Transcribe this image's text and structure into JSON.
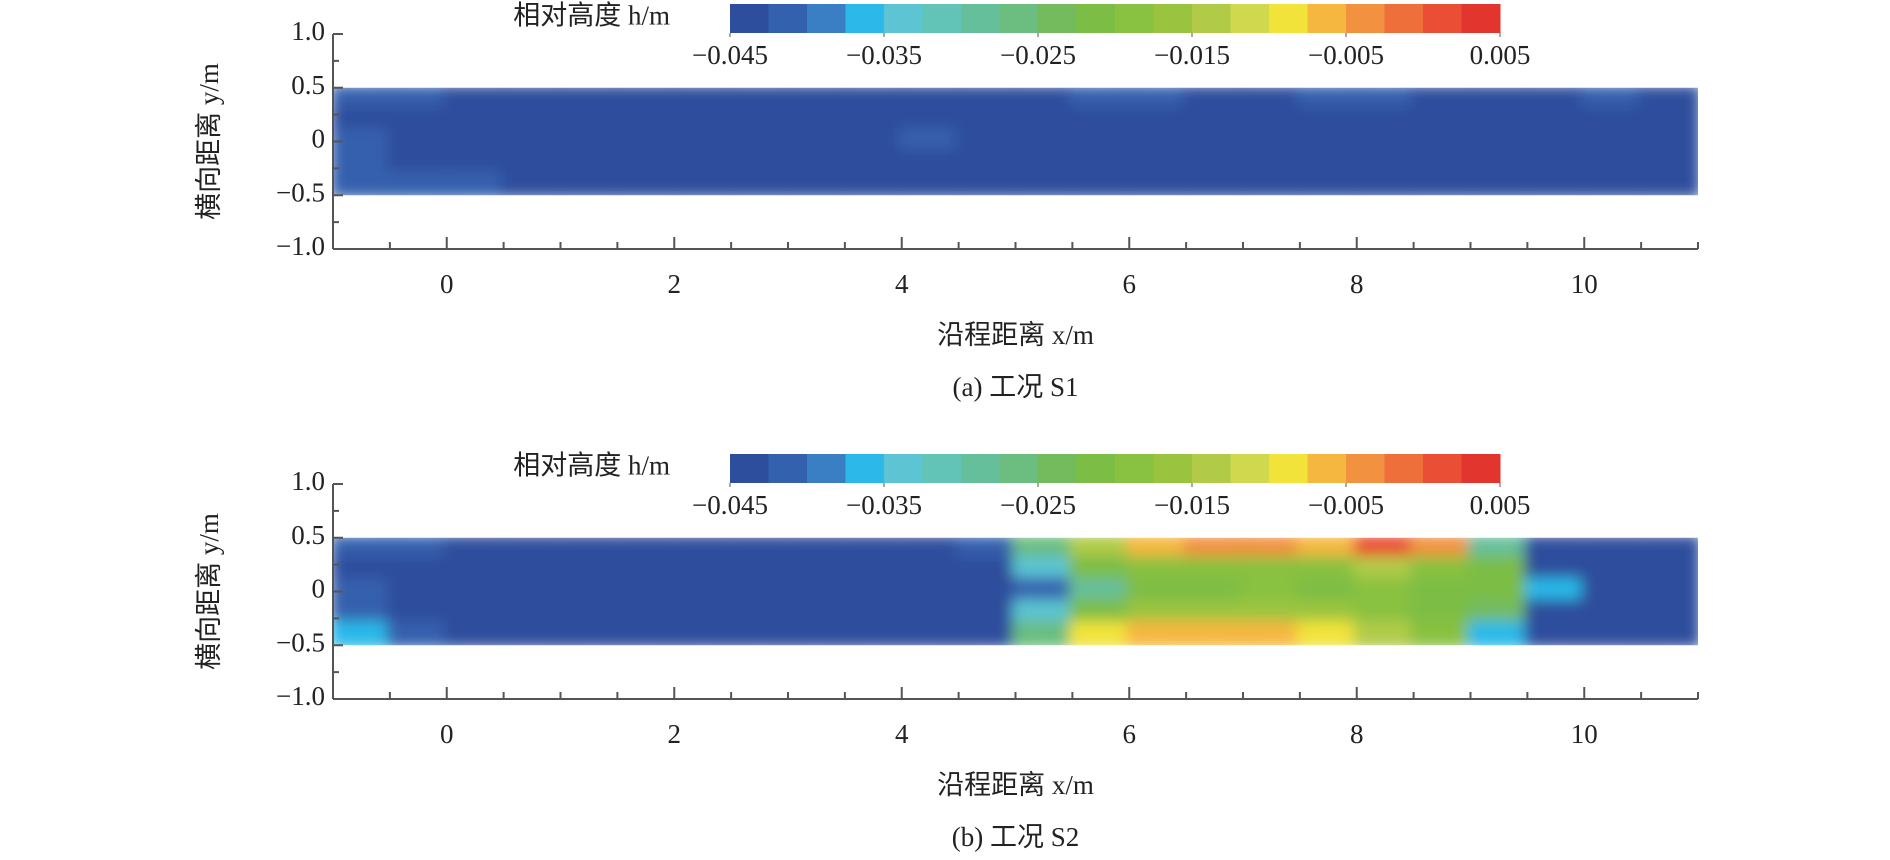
{
  "chart_data": [
    {
      "type": "contour",
      "caption": "(a) 工况 S1",
      "xlabel": "沿程距离 x/m",
      "ylabel": "横向距离 y/m",
      "xlim": [
        -1,
        11
      ],
      "ylim": [
        -1,
        1
      ],
      "xticks": [
        0,
        2,
        4,
        6,
        8,
        10
      ],
      "xticks_minor": [
        -0.5,
        0.5,
        1,
        1.5,
        2.5,
        3,
        3.5,
        4.5,
        5,
        5.5,
        6.5,
        7,
        7.5,
        8.5,
        9,
        9.5,
        10.5,
        11
      ],
      "yticks": [
        {
          "value": -1,
          "label": "−1.0"
        },
        {
          "value": -0.5,
          "label": "−0.5"
        },
        0,
        0.5,
        {
          "value": 1,
          "label": "1.0"
        }
      ],
      "yticks_minor": [
        -0.75,
        -0.25,
        0.25,
        0.75
      ],
      "x_edges": [
        -1,
        -0.5,
        0,
        0.5,
        1,
        1.5,
        2,
        2.5,
        3,
        3.5,
        4,
        4.5,
        5,
        5.5,
        6,
        6.5,
        7,
        7.5,
        8,
        8.5,
        9,
        9.5,
        10,
        10.5,
        11
      ],
      "y_edges": [
        0.5,
        0.3,
        0.1,
        -0.1,
        -0.3,
        -0.5
      ],
      "z": [
        [
          -0.042,
          -0.042,
          -0.043,
          -0.044,
          -0.044,
          -0.044,
          -0.044,
          -0.044,
          -0.043,
          -0.043,
          -0.044,
          -0.044,
          -0.043,
          -0.042,
          -0.042,
          -0.043,
          -0.043,
          -0.042,
          -0.042,
          -0.043,
          -0.043,
          -0.043,
          -0.042,
          -0.043
        ],
        [
          -0.043,
          -0.043,
          -0.044,
          -0.044,
          -0.044,
          -0.044,
          -0.044,
          -0.044,
          -0.044,
          -0.043,
          -0.044,
          -0.044,
          -0.043,
          -0.043,
          -0.043,
          -0.043,
          -0.043,
          -0.043,
          -0.043,
          -0.043,
          -0.043,
          -0.043,
          -0.043,
          -0.043
        ],
        [
          -0.042,
          -0.043,
          -0.043,
          -0.044,
          -0.044,
          -0.043,
          -0.044,
          -0.044,
          -0.044,
          -0.043,
          -0.042,
          -0.043,
          -0.044,
          -0.044,
          -0.043,
          -0.043,
          -0.044,
          -0.044,
          -0.044,
          -0.043,
          -0.044,
          -0.044,
          -0.043,
          -0.043
        ],
        [
          -0.042,
          -0.043,
          -0.044,
          -0.044,
          -0.044,
          -0.043,
          -0.044,
          -0.044,
          -0.044,
          -0.043,
          -0.043,
          -0.043,
          -0.044,
          -0.044,
          -0.044,
          -0.044,
          -0.044,
          -0.044,
          -0.044,
          -0.044,
          -0.044,
          -0.044,
          -0.043,
          -0.043
        ],
        [
          -0.041,
          -0.041,
          -0.042,
          -0.043,
          -0.043,
          -0.043,
          -0.043,
          -0.043,
          -0.043,
          -0.043,
          -0.043,
          -0.043,
          -0.043,
          -0.043,
          -0.043,
          -0.043,
          -0.043,
          -0.043,
          -0.043,
          -0.043,
          -0.043,
          -0.043,
          -0.043,
          -0.043
        ]
      ],
      "colorbar": {
        "label": "相对高度 h/m",
        "lim": [
          -0.045,
          0.005
        ],
        "ticks": [
          {
            "value": -0.045,
            "label": "−0.045"
          },
          {
            "value": -0.035,
            "label": "−0.035"
          },
          {
            "value": -0.025,
            "label": "−0.025"
          },
          {
            "value": -0.015,
            "label": "−0.015"
          },
          {
            "value": -0.005,
            "label": "−0.005"
          },
          0.005
        ],
        "colors": [
          "#2d4e9c",
          "#3461ad",
          "#3a7fc4",
          "#2cb9e9",
          "#5cc4d2",
          "#62c3b7",
          "#66bf9b",
          "#6bbd80",
          "#74bb5e",
          "#7cbd45",
          "#89c140",
          "#9ac43f",
          "#b1cb48",
          "#d0d94d",
          "#f2e33a",
          "#f5b740",
          "#f29240",
          "#ee6f3a",
          "#ea4e35",
          "#e2352e"
        ]
      }
    },
    {
      "type": "contour",
      "caption": "(b) 工况 S2",
      "xlabel": "沿程距离 x/m",
      "ylabel": "横向距离 y/m",
      "xlim": [
        -1,
        11
      ],
      "ylim": [
        -1,
        1
      ],
      "xticks": [
        0,
        2,
        4,
        6,
        8,
        10
      ],
      "xticks_minor": [
        -0.5,
        0.5,
        1,
        1.5,
        2.5,
        3,
        3.5,
        4.5,
        5,
        5.5,
        6.5,
        7,
        7.5,
        8.5,
        9,
        9.5,
        10.5,
        11
      ],
      "yticks": [
        {
          "value": -1,
          "label": "−1.0"
        },
        {
          "value": -0.5,
          "label": "−0.5"
        },
        0,
        0.5,
        {
          "value": 1,
          "label": "1.0"
        }
      ],
      "yticks_minor": [
        -0.75,
        -0.25,
        0.25,
        0.75
      ],
      "x_edges": [
        -1,
        -0.5,
        0,
        0.5,
        1,
        1.5,
        2,
        2.5,
        3,
        3.5,
        4,
        4.5,
        5,
        5.5,
        6,
        6.5,
        7,
        7.5,
        8,
        8.5,
        9,
        9.5,
        10,
        10.5,
        11
      ],
      "y_edges": [
        0.5,
        0.3,
        0.1,
        -0.1,
        -0.3,
        -0.5
      ],
      "z": [
        [
          -0.041,
          -0.042,
          -0.043,
          -0.044,
          -0.044,
          -0.044,
          -0.044,
          -0.044,
          -0.044,
          -0.044,
          -0.044,
          -0.04,
          -0.025,
          -0.015,
          -0.006,
          -0.004,
          -0.005,
          -0.006,
          0.001,
          -0.003,
          -0.03,
          -0.044,
          -0.044,
          -0.044
        ],
        [
          -0.043,
          -0.043,
          -0.044,
          -0.044,
          -0.044,
          -0.044,
          -0.044,
          -0.044,
          -0.044,
          -0.044,
          -0.044,
          -0.044,
          -0.033,
          -0.022,
          -0.019,
          -0.018,
          -0.018,
          -0.019,
          -0.014,
          -0.02,
          -0.021,
          -0.044,
          -0.044,
          -0.044
        ],
        [
          -0.042,
          -0.043,
          -0.044,
          -0.044,
          -0.044,
          -0.044,
          -0.044,
          -0.044,
          -0.044,
          -0.044,
          -0.044,
          -0.044,
          -0.042,
          -0.03,
          -0.022,
          -0.021,
          -0.02,
          -0.021,
          -0.02,
          -0.022,
          -0.021,
          -0.036,
          -0.044,
          -0.044
        ],
        [
          -0.041,
          -0.043,
          -0.044,
          -0.044,
          -0.044,
          -0.044,
          -0.044,
          -0.044,
          -0.044,
          -0.044,
          -0.044,
          -0.044,
          -0.034,
          -0.022,
          -0.017,
          -0.016,
          -0.016,
          -0.017,
          -0.02,
          -0.022,
          -0.023,
          -0.044,
          -0.044,
          -0.044
        ],
        [
          -0.037,
          -0.04,
          -0.043,
          -0.044,
          -0.044,
          -0.044,
          -0.044,
          -0.044,
          -0.044,
          -0.044,
          -0.044,
          -0.043,
          -0.027,
          -0.01,
          -0.007,
          -0.006,
          -0.007,
          -0.008,
          -0.014,
          -0.02,
          -0.036,
          -0.044,
          -0.044,
          -0.044
        ]
      ],
      "colorbar": {
        "label": "相对高度 h/m",
        "lim": [
          -0.045,
          0.005
        ],
        "ticks": [
          {
            "value": -0.045,
            "label": "−0.045"
          },
          {
            "value": -0.035,
            "label": "−0.035"
          },
          {
            "value": -0.025,
            "label": "−0.025"
          },
          {
            "value": -0.015,
            "label": "−0.015"
          },
          {
            "value": -0.005,
            "label": "−0.005"
          },
          0.005
        ],
        "colors": [
          "#2d4e9c",
          "#3461ad",
          "#3a7fc4",
          "#2cb9e9",
          "#5cc4d2",
          "#62c3b7",
          "#66bf9b",
          "#6bbd80",
          "#74bb5e",
          "#7cbd45",
          "#89c140",
          "#9ac43f",
          "#b1cb48",
          "#d0d94d",
          "#f2e33a",
          "#f5b740",
          "#f29240",
          "#ee6f3a",
          "#ea4e35",
          "#e2352e"
        ]
      }
    }
  ]
}
